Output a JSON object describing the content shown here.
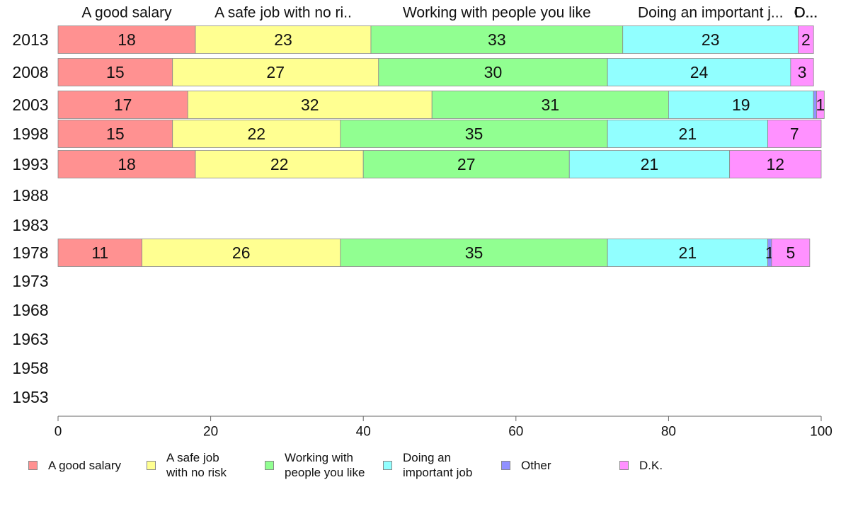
{
  "chart_data": {
    "type": "bar",
    "orientation": "horizontal",
    "stacked": true,
    "categories": [
      "2013",
      "2008",
      "2003",
      "1998",
      "1993",
      "1988",
      "1983",
      "1978",
      "1973",
      "1968",
      "1963",
      "1958",
      "1953"
    ],
    "series": [
      {
        "name": "A good salary",
        "color": "#ff9191",
        "values": [
          18,
          15,
          17,
          15,
          18,
          null,
          null,
          11,
          null,
          null,
          null,
          null,
          null
        ]
      },
      {
        "name": "A safe job with no risk",
        "color": "#ffff91",
        "values": [
          23,
          27,
          32,
          22,
          22,
          null,
          null,
          26,
          null,
          null,
          null,
          null,
          null
        ]
      },
      {
        "name": "Working with people you like",
        "color": "#91ff91",
        "values": [
          33,
          30,
          31,
          35,
          27,
          null,
          null,
          35,
          null,
          null,
          null,
          null,
          null
        ]
      },
      {
        "name": "Doing an important job",
        "color": "#91ffff",
        "values": [
          23,
          24,
          19,
          21,
          21,
          null,
          null,
          21,
          null,
          null,
          null,
          null,
          null
        ]
      },
      {
        "name": "Other",
        "color": "#9191ff",
        "values": [
          0,
          0,
          0.4,
          0,
          0,
          null,
          null,
          0.5,
          null,
          null,
          null,
          null,
          null
        ]
      },
      {
        "name": "D.K.",
        "color": "#ff91ff",
        "values": [
          2,
          3,
          1,
          7,
          12,
          null,
          null,
          5,
          null,
          null,
          null,
          null,
          null
        ]
      }
    ],
    "segment_labels": [
      [
        "18",
        "23",
        "33",
        "23",
        "",
        "2"
      ],
      [
        "15",
        "27",
        "30",
        "24",
        "",
        "3"
      ],
      [
        "17",
        "32",
        "31",
        "19",
        "",
        "1"
      ],
      [
        "15",
        "22",
        "35",
        "21",
        "",
        "7"
      ],
      [
        "18",
        "22",
        "27",
        "21",
        "",
        "12"
      ],
      null,
      null,
      [
        "11",
        "26",
        "35",
        "21",
        "1",
        "5"
      ],
      null,
      null,
      null,
      null,
      null
    ],
    "header_labels": [
      "A good salary",
      "A safe job with no ri..",
      "Working with people you like",
      "Doing an important j...",
      "O...",
      "D..."
    ],
    "xlim": [
      0,
      100
    ],
    "xticks": [
      0,
      20,
      40,
      60,
      80,
      100
    ],
    "xlabel": "",
    "ylabel": "",
    "grid": false,
    "legend_position": "bottom"
  },
  "legend": {
    "items": [
      {
        "label": "A good salary",
        "color": "#ff9191"
      },
      {
        "label": "A safe job\nwith no risk",
        "color": "#ffff91"
      },
      {
        "label": "Working with\npeople you like",
        "color": "#91ff91"
      },
      {
        "label": "Doing an\nimportant job",
        "color": "#91ffff"
      },
      {
        "label": "Other",
        "color": "#9191ff"
      },
      {
        "label": "D.K.",
        "color": "#ff91ff"
      }
    ]
  }
}
